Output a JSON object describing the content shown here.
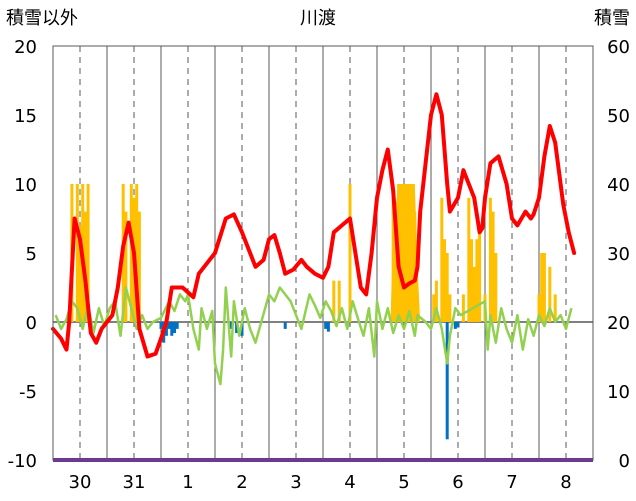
{
  "chart_data": {
    "type": "line",
    "title": "川渡",
    "y_left_label": "積雪以外",
    "y_right_label": "積雪",
    "y_left_range": [
      -10,
      20
    ],
    "y_right_range": [
      0,
      60
    ],
    "y_left_ticks": [
      "20",
      "15",
      "10",
      "5",
      "0",
      "-5",
      "-10"
    ],
    "y_right_ticks": [
      "60",
      "50",
      "40",
      "30",
      "20",
      "10",
      "0"
    ],
    "x_range": [
      0,
      10
    ],
    "x_categories": [
      "30",
      "31",
      "1",
      "2",
      "3",
      "4",
      "5",
      "6",
      "7",
      "8"
    ],
    "grid": "vertical solid every 1/2 day, dashed at day centers",
    "colors": {
      "red": "#ff0000",
      "green": "#92d050",
      "orange": "#ffc000",
      "blue": "#0070c0",
      "purple": "#7030a0",
      "grid": "#595959"
    },
    "series_red": [
      [
        0,
        -0.5
      ],
      [
        0.15,
        -1.2
      ],
      [
        0.25,
        -2
      ],
      [
        0.3,
        0
      ],
      [
        0.4,
        7.5
      ],
      [
        0.5,
        6
      ],
      [
        0.6,
        3
      ],
      [
        0.7,
        -0.8
      ],
      [
        0.8,
        -1.5
      ],
      [
        0.9,
        -0.5
      ],
      [
        1.0,
        0
      ],
      [
        1.1,
        0.5
      ],
      [
        1.2,
        2.5
      ],
      [
        1.3,
        5.5
      ],
      [
        1.4,
        7.2
      ],
      [
        1.5,
        5
      ],
      [
        1.6,
        -0.5
      ],
      [
        1.75,
        -2.5
      ],
      [
        1.9,
        -2.3
      ],
      [
        2.0,
        -1.2
      ],
      [
        2.1,
        0
      ],
      [
        2.2,
        2.5
      ],
      [
        2.4,
        2.5
      ],
      [
        2.6,
        1.8
      ],
      [
        2.7,
        3.5
      ],
      [
        2.8,
        4
      ],
      [
        3.0,
        5
      ],
      [
        3.2,
        7.5
      ],
      [
        3.35,
        7.8
      ],
      [
        3.5,
        6.5
      ],
      [
        3.6,
        5.5
      ],
      [
        3.75,
        4
      ],
      [
        3.9,
        4.5
      ],
      [
        4.0,
        6
      ],
      [
        4.1,
        6.3
      ],
      [
        4.2,
        5
      ],
      [
        4.3,
        3.5
      ],
      [
        4.45,
        3.8
      ],
      [
        4.6,
        4.5
      ],
      [
        4.7,
        4
      ],
      [
        4.85,
        3.5
      ],
      [
        5.0,
        3.2
      ],
      [
        5.1,
        4
      ],
      [
        5.2,
        6.5
      ],
      [
        5.35,
        7
      ],
      [
        5.5,
        7.5
      ],
      [
        5.6,
        5
      ],
      [
        5.7,
        2.5
      ],
      [
        5.8,
        2
      ],
      [
        5.9,
        5
      ],
      [
        6.0,
        9
      ],
      [
        6.1,
        11
      ],
      [
        6.2,
        12.5
      ],
      [
        6.3,
        9.5
      ],
      [
        6.4,
        4
      ],
      [
        6.5,
        2.5
      ],
      [
        6.6,
        2.8
      ],
      [
        6.7,
        3
      ],
      [
        6.75,
        4
      ],
      [
        6.8,
        8
      ],
      [
        6.9,
        11.5
      ],
      [
        7.0,
        15
      ],
      [
        7.1,
        16.5
      ],
      [
        7.2,
        15
      ],
      [
        7.3,
        10
      ],
      [
        7.35,
        8
      ],
      [
        7.5,
        9
      ],
      [
        7.6,
        11
      ],
      [
        7.8,
        9
      ],
      [
        7.9,
        6.5
      ],
      [
        7.95,
        6.8
      ],
      [
        8.0,
        9
      ],
      [
        8.1,
        11.5
      ],
      [
        8.25,
        12
      ],
      [
        8.4,
        10
      ],
      [
        8.5,
        7.5
      ],
      [
        8.6,
        7
      ],
      [
        8.75,
        8
      ],
      [
        8.85,
        7.5
      ],
      [
        8.9,
        7.8
      ],
      [
        9.0,
        9
      ],
      [
        9.1,
        12
      ],
      [
        9.2,
        14.2
      ],
      [
        9.3,
        13
      ],
      [
        9.45,
        8.5
      ],
      [
        9.55,
        6.5
      ],
      [
        9.65,
        5
      ]
    ],
    "series_green": [
      [
        0.05,
        0.5
      ],
      [
        0.15,
        -0.5
      ],
      [
        0.25,
        0.2
      ],
      [
        0.35,
        1.5
      ],
      [
        0.45,
        1
      ],
      [
        0.55,
        -0.5
      ],
      [
        0.65,
        1.2
      ],
      [
        0.75,
        -0.8
      ],
      [
        0.85,
        1
      ],
      [
        0.95,
        -0.3
      ],
      [
        1.05,
        1
      ],
      [
        1.15,
        1.5
      ],
      [
        1.25,
        -1
      ],
      [
        1.35,
        2.5
      ],
      [
        1.45,
        1
      ],
      [
        1.55,
        -0.5
      ],
      [
        1.65,
        0.5
      ],
      [
        1.75,
        -0.5
      ],
      [
        1.85,
        0
      ],
      [
        2.0,
        0.3
      ],
      [
        2.15,
        1.5
      ],
      [
        2.25,
        0.8
      ],
      [
        2.35,
        2
      ],
      [
        2.45,
        1.5
      ],
      [
        2.5,
        2
      ],
      [
        2.6,
        -0.5
      ],
      [
        2.7,
        -2
      ],
      [
        2.75,
        1
      ],
      [
        2.85,
        -0.5
      ],
      [
        2.95,
        0.8
      ],
      [
        3.0,
        -3
      ],
      [
        3.1,
        -4.5
      ],
      [
        3.15,
        -2
      ],
      [
        3.2,
        2.5
      ],
      [
        3.3,
        -2.5
      ],
      [
        3.35,
        1.5
      ],
      [
        3.45,
        -1
      ],
      [
        3.55,
        1
      ],
      [
        3.65,
        -0.5
      ],
      [
        3.75,
        -1.5
      ],
      [
        4.0,
        2
      ],
      [
        4.1,
        1.5
      ],
      [
        4.2,
        2.5
      ],
      [
        4.3,
        2
      ],
      [
        4.4,
        1.5
      ],
      [
        4.5,
        0.5
      ],
      [
        4.6,
        -0.5
      ],
      [
        4.75,
        2
      ],
      [
        4.85,
        1.2
      ],
      [
        4.95,
        0.3
      ],
      [
        5.05,
        1.5
      ],
      [
        5.15,
        0.8
      ],
      [
        5.25,
        -0.3
      ],
      [
        5.35,
        1
      ],
      [
        5.45,
        -0.5
      ],
      [
        5.55,
        1.5
      ],
      [
        5.65,
        0.2
      ],
      [
        5.75,
        -1
      ],
      [
        5.85,
        1
      ],
      [
        5.95,
        -2.5
      ],
      [
        6.0,
        1.5
      ],
      [
        6.1,
        -0.5
      ],
      [
        6.2,
        1
      ],
      [
        6.3,
        -0.8
      ],
      [
        6.4,
        0.5
      ],
      [
        6.5,
        -0.5
      ],
      [
        6.6,
        0.8
      ],
      [
        6.7,
        -1
      ],
      [
        6.75,
        0.5
      ],
      [
        6.9,
        0
      ],
      [
        7.0,
        -0.5
      ],
      [
        7.1,
        1
      ],
      [
        7.2,
        -0.5
      ],
      [
        7.3,
        -3
      ],
      [
        7.35,
        -1
      ],
      [
        7.45,
        1
      ],
      [
        7.55,
        0.5
      ],
      [
        8.0,
        1.5
      ],
      [
        8.05,
        -2
      ],
      [
        8.1,
        0.5
      ],
      [
        8.2,
        -1.5
      ],
      [
        8.3,
        1
      ],
      [
        8.4,
        -0.5
      ],
      [
        8.5,
        -1.5
      ],
      [
        8.6,
        0.5
      ],
      [
        8.7,
        -2
      ],
      [
        8.8,
        0.2
      ],
      [
        8.9,
        -1
      ],
      [
        9.0,
        0.5
      ],
      [
        9.1,
        -0.3
      ],
      [
        9.2,
        1
      ],
      [
        9.3,
        0
      ],
      [
        9.4,
        0.5
      ],
      [
        9.5,
        -0.5
      ],
      [
        9.6,
        1
      ]
    ],
    "series_orange_bars": [
      [
        0.35,
        10
      ],
      [
        0.45,
        10
      ],
      [
        0.5,
        7
      ],
      [
        0.55,
        10
      ],
      [
        0.6,
        8
      ],
      [
        0.65,
        10
      ],
      [
        1.3,
        10
      ],
      [
        1.35,
        8
      ],
      [
        1.45,
        10
      ],
      [
        1.5,
        9
      ],
      [
        1.55,
        10
      ],
      [
        1.6,
        8
      ],
      [
        5.2,
        3
      ],
      [
        5.3,
        3
      ],
      [
        5.5,
        10
      ],
      [
        6.3,
        10
      ],
      [
        6.35,
        6
      ],
      [
        6.4,
        10
      ],
      [
        6.5,
        10
      ],
      [
        6.55,
        8
      ],
      [
        6.6,
        9
      ],
      [
        6.65,
        10
      ],
      [
        6.7,
        8
      ],
      [
        7.05,
        2
      ],
      [
        7.1,
        3
      ],
      [
        7.2,
        9
      ],
      [
        7.25,
        6
      ],
      [
        7.3,
        5
      ],
      [
        7.35,
        2
      ],
      [
        7.6,
        2
      ],
      [
        7.7,
        9
      ],
      [
        7.75,
        6
      ],
      [
        7.8,
        4
      ],
      [
        7.85,
        6
      ],
      [
        7.9,
        7
      ],
      [
        8.0,
        2
      ],
      [
        8.1,
        9
      ],
      [
        8.15,
        8
      ],
      [
        8.2,
        5
      ],
      [
        9.0,
        2
      ],
      [
        9.05,
        5
      ],
      [
        9.1,
        5
      ],
      [
        9.2,
        4
      ],
      [
        9.3,
        2
      ]
    ],
    "series_orange_fill": [
      [
        6.25,
        0
      ],
      [
        6.3,
        7
      ],
      [
        6.4,
        10
      ],
      [
        6.5,
        10
      ],
      [
        6.6,
        10
      ],
      [
        6.7,
        10
      ],
      [
        6.75,
        4
      ],
      [
        6.8,
        0
      ]
    ],
    "series_blue_bars": [
      [
        2.0,
        -0.5
      ],
      [
        2.05,
        -1.5
      ],
      [
        2.1,
        -1
      ],
      [
        2.15,
        -0.5
      ],
      [
        2.2,
        -1
      ],
      [
        2.25,
        -0.8
      ],
      [
        2.3,
        -0.5
      ],
      [
        3.3,
        -0.5
      ],
      [
        3.4,
        -0.8
      ],
      [
        3.5,
        -1
      ],
      [
        4.3,
        -0.5
      ],
      [
        5.05,
        -0.5
      ],
      [
        5.1,
        -0.7
      ],
      [
        7.3,
        -8.5
      ],
      [
        7.45,
        -0.5
      ],
      [
        7.5,
        -0.4
      ]
    ],
    "series_purple": [
      [
        0,
        -10
      ],
      [
        10,
        -10
      ]
    ]
  }
}
